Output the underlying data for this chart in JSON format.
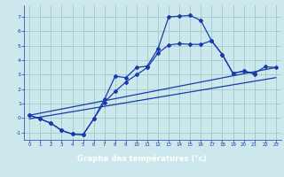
{
  "xlabel": "Graphe des températures (°c)",
  "background_color": "#cce8ec",
  "grid_color": "#99cccc",
  "line_color": "#1a3aaa",
  "xlabel_bg": "#2244aa",
  "xlabel_fg": "#ffffff",
  "line1_x": [
    0,
    1,
    2,
    3,
    4,
    5,
    6,
    7,
    8,
    9,
    10,
    11,
    12,
    13,
    14,
    15,
    16,
    17,
    18,
    19,
    20,
    21
  ],
  "line1_y": [
    0.2,
    -0.05,
    -0.35,
    -0.85,
    -1.1,
    -1.15,
    -0.05,
    1.3,
    2.9,
    2.8,
    3.5,
    3.6,
    4.8,
    7.0,
    7.05,
    7.1,
    6.75,
    5.35,
    4.4,
    3.1,
    3.25,
    3.05
  ],
  "line2_x": [
    0,
    1,
    2,
    3,
    4,
    5,
    6,
    7,
    8,
    9,
    10,
    11,
    12,
    13,
    14,
    15,
    16,
    17,
    18,
    19,
    20,
    21,
    22,
    23
  ],
  "line2_y": [
    0.2,
    -0.05,
    -0.35,
    -0.85,
    -1.1,
    -1.15,
    -0.05,
    1.1,
    1.85,
    2.5,
    3.0,
    3.5,
    4.5,
    5.05,
    5.15,
    5.1,
    5.1,
    5.35,
    4.4,
    3.1,
    3.25,
    3.1,
    3.55,
    3.5
  ],
  "line3_x": [
    0,
    23
  ],
  "line3_y": [
    0.2,
    3.5
  ],
  "line4_x": [
    0,
    23
  ],
  "line4_y": [
    -0.05,
    2.8
  ],
  "ylim": [
    -1.5,
    7.8
  ],
  "xlim": [
    -0.5,
    23.5
  ],
  "yticks": [
    -1,
    0,
    1,
    2,
    3,
    4,
    5,
    6,
    7
  ],
  "xticks": [
    0,
    1,
    2,
    3,
    4,
    5,
    6,
    7,
    8,
    9,
    10,
    11,
    12,
    13,
    14,
    15,
    16,
    17,
    18,
    19,
    20,
    21,
    22,
    23
  ]
}
